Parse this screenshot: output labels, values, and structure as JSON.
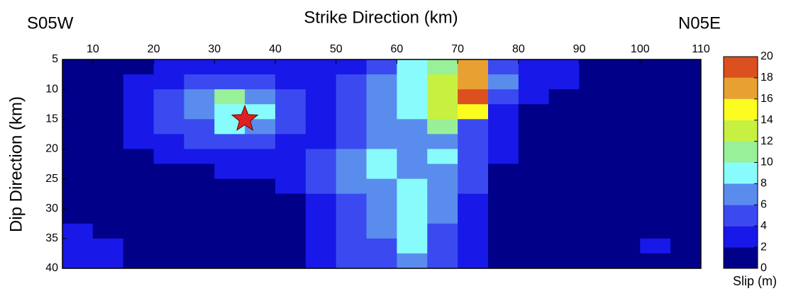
{
  "chart_data": {
    "type": "contour",
    "title": "Strike Direction (km)",
    "left_label": "S05W",
    "right_label": "N05E",
    "ylabel": "Dip Direction (km)",
    "colorbar_label": "Slip (m)",
    "xlim": [
      5,
      110
    ],
    "ylim": [
      5,
      40
    ],
    "xticks": [
      10,
      20,
      30,
      40,
      50,
      60,
      70,
      80,
      90,
      100,
      110
    ],
    "yticks": [
      5,
      10,
      15,
      20,
      25,
      30,
      35,
      40
    ],
    "clim": [
      0,
      20
    ],
    "cticks": [
      0,
      2,
      4,
      6,
      8,
      10,
      12,
      14,
      16,
      18,
      20
    ],
    "colors": [
      "#000088",
      "#1818e8",
      "#3a4af0",
      "#5a8cee",
      "#88fcfc",
      "#98f098",
      "#c8f040",
      "#fcfc20",
      "#e8a030",
      "#dc5020"
    ],
    "x": [
      7.5,
      12.5,
      17.5,
      22.5,
      27.5,
      32.5,
      37.5,
      42.5,
      47.5,
      52.5,
      57.5,
      62.5,
      67.5,
      72.5,
      77.5,
      82.5,
      87.5,
      92.5,
      97.5,
      102.5,
      107.5
    ],
    "y": [
      6.25,
      8.75,
      11.25,
      13.75,
      16.25,
      18.75,
      21.25,
      23.75,
      26.25,
      28.75,
      31.25,
      33.75,
      36.25,
      38.75
    ],
    "z": [
      [
        1,
        1,
        1,
        3,
        3,
        3,
        3,
        3,
        3,
        3,
        5,
        9,
        11,
        17,
        5,
        3,
        3,
        1,
        1,
        1,
        1
      ],
      [
        1,
        1,
        3,
        3,
        5,
        5,
        5,
        3,
        3,
        5,
        7,
        9,
        13,
        17,
        7,
        3,
        3,
        1,
        1,
        1,
        1
      ],
      [
        1,
        1,
        3,
        5,
        7,
        11,
        7,
        5,
        3,
        5,
        7,
        9,
        13,
        19,
        5,
        3,
        1,
        1,
        1,
        1,
        1
      ],
      [
        1,
        1,
        3,
        5,
        7,
        9,
        9,
        5,
        3,
        5,
        7,
        9,
        13,
        15,
        3,
        1,
        1,
        1,
        1,
        1,
        1
      ],
      [
        1,
        1,
        3,
        5,
        5,
        9,
        7,
        5,
        3,
        5,
        7,
        7,
        11,
        5,
        3,
        1,
        1,
        1,
        1,
        1,
        1
      ],
      [
        1,
        1,
        3,
        3,
        5,
        5,
        5,
        3,
        3,
        5,
        7,
        7,
        7,
        5,
        3,
        1,
        1,
        1,
        1,
        1,
        1
      ],
      [
        1,
        1,
        1,
        3,
        3,
        3,
        3,
        3,
        5,
        7,
        9,
        7,
        9,
        5,
        3,
        1,
        1,
        1,
        1,
        1,
        1
      ],
      [
        1,
        1,
        1,
        1,
        1,
        3,
        3,
        3,
        5,
        7,
        9,
        7,
        7,
        5,
        1,
        1,
        1,
        1,
        1,
        1,
        1
      ],
      [
        1,
        1,
        1,
        1,
        1,
        1,
        1,
        3,
        5,
        7,
        7,
        9,
        7,
        5,
        1,
        1,
        1,
        1,
        1,
        1,
        1
      ],
      [
        1,
        1,
        1,
        1,
        1,
        1,
        1,
        1,
        3,
        5,
        7,
        9,
        7,
        3,
        1,
        1,
        1,
        1,
        1,
        1,
        1
      ],
      [
        1,
        1,
        1,
        1,
        1,
        1,
        1,
        1,
        3,
        5,
        7,
        9,
        7,
        3,
        1,
        1,
        1,
        1,
        1,
        1,
        1
      ],
      [
        3,
        1,
        1,
        1,
        1,
        1,
        1,
        1,
        3,
        5,
        7,
        9,
        5,
        3,
        1,
        1,
        1,
        1,
        1,
        1,
        1
      ],
      [
        3,
        3,
        1,
        1,
        1,
        1,
        1,
        1,
        3,
        5,
        5,
        9,
        5,
        3,
        1,
        1,
        1,
        1,
        1,
        3,
        1
      ],
      [
        3,
        3,
        1,
        1,
        1,
        1,
        1,
        1,
        3,
        5,
        5,
        7,
        5,
        3,
        1,
        1,
        1,
        1,
        1,
        1,
        1
      ]
    ],
    "epicenter": {
      "x": 35,
      "y": 15,
      "color": "#e02020"
    }
  }
}
